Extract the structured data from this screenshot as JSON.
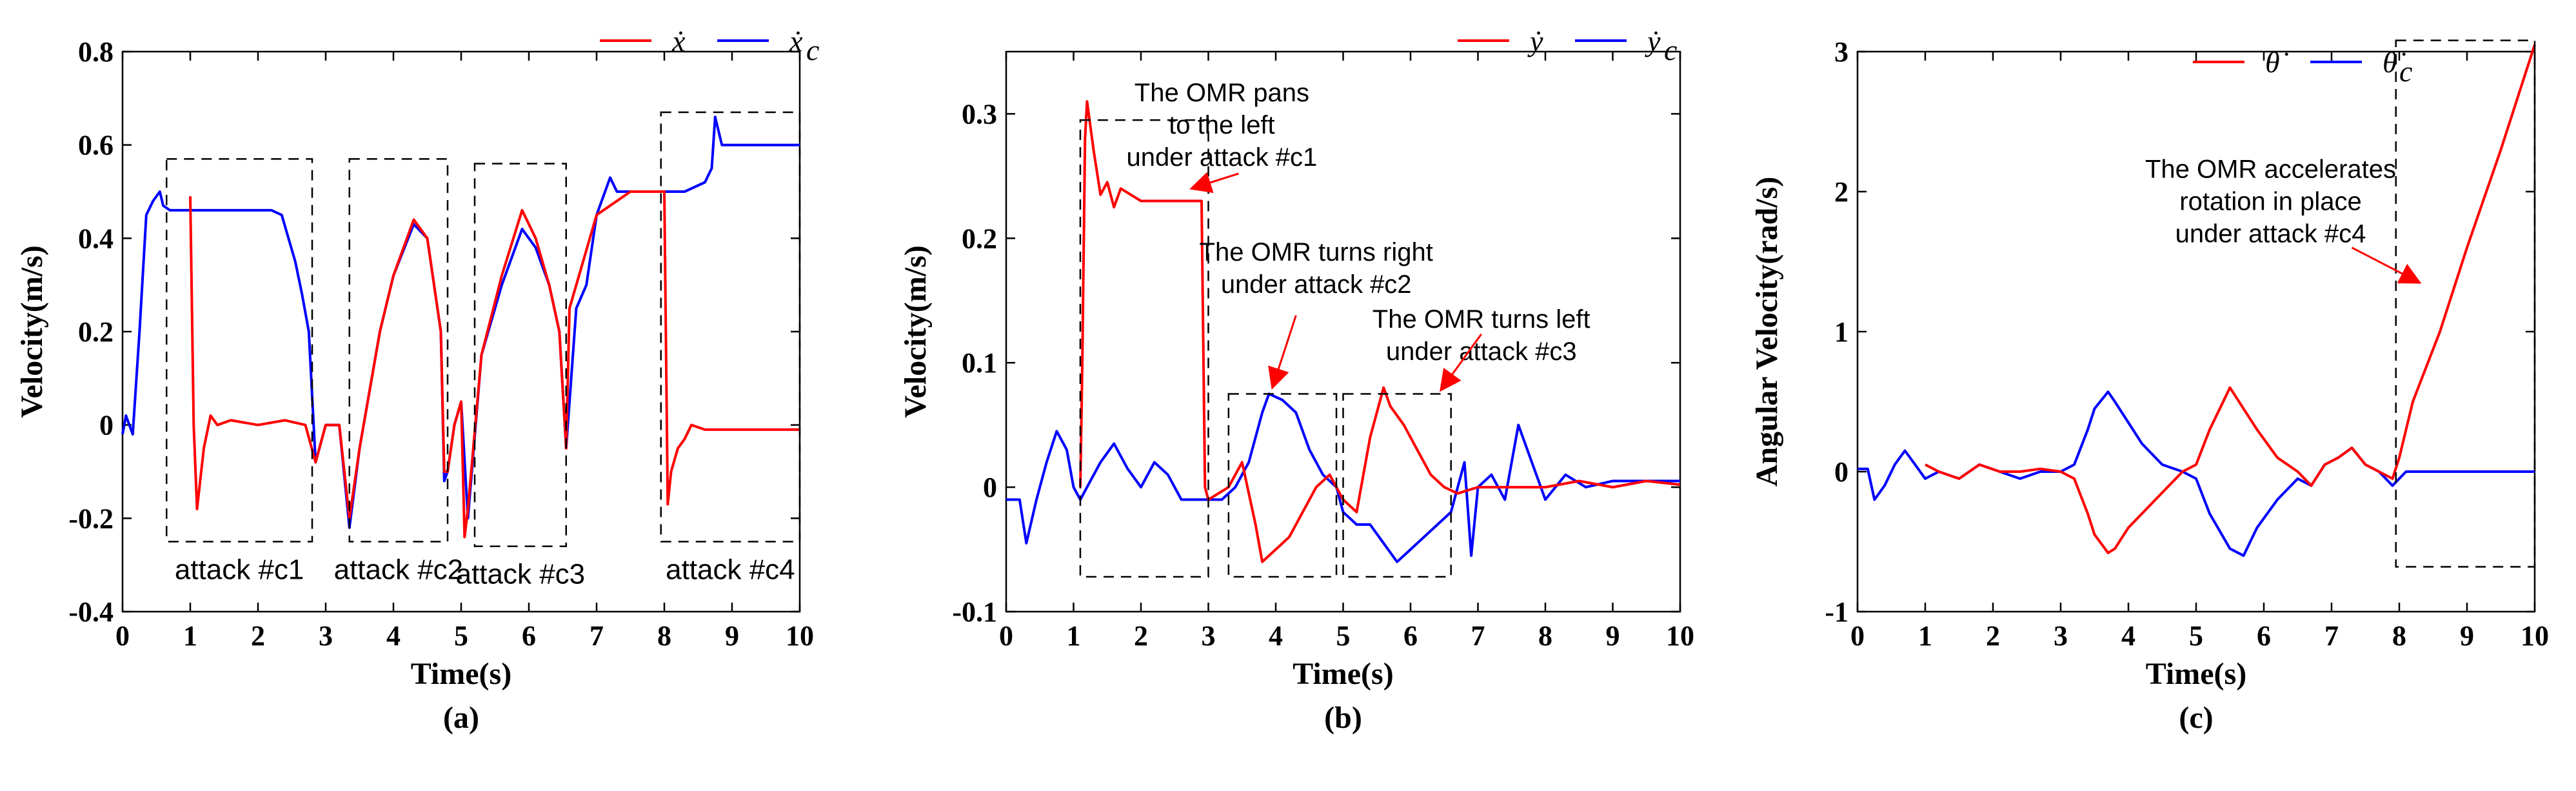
{
  "chart_data": [
    {
      "id": "a",
      "type": "line",
      "caption": "(a)",
      "xlabel": "Time(s)",
      "ylabel": "Velocity(m/s)",
      "xlim": [
        0,
        10
      ],
      "ylim": [
        -0.4,
        0.8
      ],
      "xticks": [
        "0",
        "1",
        "2",
        "3",
        "4",
        "5",
        "6",
        "7",
        "8",
        "9",
        "10"
      ],
      "yticks": [
        "-0.4",
        "-0.2",
        "0",
        "0.2",
        "0.4",
        "0.6",
        "0.8"
      ],
      "ytick_values": [
        -0.4,
        -0.2,
        0,
        0.2,
        0.4,
        0.6,
        0.8
      ],
      "colors": {
        "actual": "#ff0000",
        "commanded": "#0000ff"
      },
      "legend": [
        {
          "name": "x-dot",
          "symbol": "ẋ",
          "color": "#ff0000"
        },
        {
          "name": "x-dot-c",
          "symbol": "ẋ",
          "subscript": "c",
          "color": "#0000ff"
        }
      ],
      "series": [
        {
          "name": "x-dot-c",
          "color": "#0000ff",
          "x": [
            0,
            0.05,
            0.15,
            0.25,
            0.35,
            0.45,
            0.55,
            0.6,
            0.7,
            1.0,
            1.5,
            2.0,
            2.2,
            2.35,
            2.45,
            2.55,
            2.65,
            2.75,
            2.85,
            3.0,
            3.2,
            3.35,
            3.5,
            3.8,
            4.0,
            4.3,
            4.5,
            4.7,
            4.75,
            4.8,
            4.9,
            5.0,
            5.1,
            5.3,
            5.6,
            5.9,
            6.1,
            6.3,
            6.45,
            6.55,
            6.7,
            6.85,
            7.0,
            7.2,
            7.3,
            7.5,
            7.7,
            8.0,
            8.3,
            8.6,
            8.7,
            8.75,
            8.85,
            9.0,
            9.5,
            10
          ],
          "y": [
            -0.02,
            0.02,
            -0.02,
            0.2,
            0.45,
            0.48,
            0.5,
            0.47,
            0.46,
            0.46,
            0.46,
            0.46,
            0.46,
            0.45,
            0.4,
            0.35,
            0.28,
            0.2,
            -0.08,
            0,
            0,
            -0.22,
            -0.05,
            0.2,
            0.32,
            0.43,
            0.4,
            0.2,
            -0.12,
            -0.1,
            0,
            0.05,
            -0.2,
            0.15,
            0.3,
            0.42,
            0.38,
            0.3,
            0.2,
            -0.05,
            0.25,
            0.3,
            0.45,
            0.53,
            0.5,
            0.5,
            0.5,
            0.5,
            0.5,
            0.52,
            0.55,
            0.66,
            0.6,
            0.6,
            0.6,
            0.6
          ]
        },
        {
          "name": "x-dot",
          "color": "#ff0000",
          "x": [
            1.0,
            1.05,
            1.1,
            1.2,
            1.3,
            1.4,
            1.6,
            2.0,
            2.4,
            2.7,
            2.85,
            3.0,
            3.2,
            3.35,
            3.5,
            3.8,
            4.0,
            4.3,
            4.5,
            4.7,
            4.75,
            4.8,
            4.9,
            5.0,
            5.05,
            5.1,
            5.3,
            5.6,
            5.9,
            6.1,
            6.3,
            6.45,
            6.55,
            6.6,
            7.0,
            7.5,
            7.9,
            8.0,
            8.05,
            8.1,
            8.2,
            8.3,
            8.4,
            8.6,
            9.0,
            9.5,
            10
          ],
          "y": [
            0.49,
            0.0,
            -0.18,
            -0.05,
            0.02,
            0.0,
            0.01,
            0.0,
            0.01,
            0.0,
            -0.08,
            0,
            0,
            -0.2,
            -0.05,
            0.2,
            0.32,
            0.44,
            0.4,
            0.2,
            -0.1,
            -0.1,
            0,
            0.05,
            -0.24,
            -0.18,
            0.15,
            0.32,
            0.46,
            0.4,
            0.3,
            0.2,
            -0.05,
            0.25,
            0.45,
            0.5,
            0.5,
            0.5,
            -0.17,
            -0.1,
            -0.05,
            -0.03,
            0.0,
            -0.01,
            -0.01,
            -0.01,
            -0.01
          ]
        }
      ],
      "attack_boxes": [
        {
          "label": "attack #c1",
          "x0": 0.65,
          "x1": 2.8,
          "y0": -0.25,
          "y1": 0.57
        },
        {
          "label": "attack #c2",
          "x0": 3.35,
          "x1": 4.8,
          "y0": -0.25,
          "y1": 0.57
        },
        {
          "label": "attack #c3",
          "x0": 5.2,
          "x1": 6.55,
          "y0": -0.26,
          "y1": 0.56
        },
        {
          "label": "attack #c4",
          "x0": 7.95,
          "x1": 10,
          "y0": -0.25,
          "y1": 0.67
        }
      ],
      "annotations": []
    },
    {
      "id": "b",
      "type": "line",
      "caption": "(b)",
      "xlabel": "Time(s)",
      "ylabel": "Velocity(m/s)",
      "xlim": [
        0,
        10
      ],
      "ylim": [
        -0.1,
        0.35
      ],
      "xticks": [
        "0",
        "1",
        "2",
        "3",
        "4",
        "5",
        "6",
        "7",
        "8",
        "9",
        "10"
      ],
      "yticks": [
        "-0.1",
        "0",
        "0.1",
        "0.2",
        "0.3"
      ],
      "ytick_values": [
        -0.1,
        0,
        0.1,
        0.2,
        0.3
      ],
      "colors": {
        "actual": "#ff0000",
        "commanded": "#0000ff"
      },
      "legend": [
        {
          "name": "y-dot",
          "symbol": "ẏ",
          "color": "#ff0000"
        },
        {
          "name": "y-dot-c",
          "symbol": "ẏ",
          "subscript": "c",
          "color": "#0000ff"
        }
      ],
      "series": [
        {
          "name": "y-dot-c",
          "color": "#0000ff",
          "x": [
            0,
            0.2,
            0.3,
            0.45,
            0.6,
            0.75,
            0.9,
            1.0,
            1.1,
            1.2,
            1.4,
            1.6,
            1.8,
            2.0,
            2.2,
            2.4,
            2.6,
            2.8,
            3.0,
            3.2,
            3.4,
            3.6,
            3.8,
            3.9,
            4.1,
            4.3,
            4.5,
            4.7,
            4.9,
            5.0,
            5.2,
            5.4,
            5.6,
            5.8,
            6.0,
            6.2,
            6.4,
            6.6,
            6.8,
            6.9,
            7.0,
            7.2,
            7.4,
            7.6,
            7.8,
            8.0,
            8.3,
            8.6,
            9.0,
            9.5,
            10
          ],
          "y": [
            -0.01,
            -0.01,
            -0.045,
            -0.01,
            0.02,
            0.045,
            0.03,
            0.0,
            -0.01,
            0.0,
            0.02,
            0.035,
            0.015,
            0.0,
            0.02,
            0.01,
            -0.01,
            -0.01,
            -0.01,
            -0.01,
            0.0,
            0.02,
            0.06,
            0.075,
            0.07,
            0.06,
            0.03,
            0.01,
            0.0,
            -0.02,
            -0.03,
            -0.03,
            -0.045,
            -0.06,
            -0.05,
            -0.04,
            -0.03,
            -0.02,
            0.02,
            -0.055,
            0.0,
            0.01,
            -0.01,
            0.05,
            0.02,
            -0.01,
            0.01,
            0.0,
            0.005,
            0.005,
            0.005
          ]
        },
        {
          "name": "y-dot",
          "color": "#ff0000",
          "x": [
            1.1,
            1.13,
            1.17,
            1.2,
            1.3,
            1.4,
            1.5,
            1.6,
            1.7,
            2.0,
            2.3,
            2.6,
            2.9,
            2.95,
            3.0,
            3.3,
            3.5,
            3.7,
            3.8,
            4.0,
            4.2,
            4.4,
            4.6,
            4.8,
            5.0,
            5.2,
            5.4,
            5.6,
            5.7,
            5.9,
            6.1,
            6.3,
            6.5,
            6.7,
            7.0,
            7.4,
            7.8,
            8.0,
            8.5,
            9.0,
            9.5,
            10
          ],
          "y": [
            0.0,
            0.1,
            0.28,
            0.31,
            0.27,
            0.235,
            0.245,
            0.225,
            0.24,
            0.23,
            0.23,
            0.23,
            0.23,
            0.0,
            -0.01,
            0.0,
            0.02,
            -0.03,
            -0.06,
            -0.05,
            -0.04,
            -0.02,
            0.0,
            0.01,
            -0.01,
            -0.02,
            0.04,
            0.08,
            0.065,
            0.05,
            0.03,
            0.01,
            0.0,
            -0.005,
            0.0,
            0.0,
            0.0,
            0.0,
            0.005,
            0.0,
            0.005,
            0.002
          ]
        }
      ],
      "attack_boxes": [
        {
          "x0": 1.1,
          "x1": 3.0,
          "y0": -0.072,
          "y1": 0.295
        },
        {
          "x0": 3.3,
          "x1": 4.9,
          "y0": -0.072,
          "y1": 0.075
        },
        {
          "x0": 5.0,
          "x1": 6.6,
          "y0": -0.072,
          "y1": 0.075
        }
      ],
      "annotations": [
        {
          "lines": [
            "The OMR pans",
            "to the left",
            "under attack #c1"
          ],
          "tx": 3.2,
          "ty": 0.31,
          "ax": 2.75,
          "ay": 0.24,
          "arrow_from_x": 3.45,
          "arrow_from_y": 0.252
        },
        {
          "lines": [
            "The OMR turns right",
            "under attack #c2"
          ],
          "tx": 4.6,
          "ty": 0.182,
          "ax": 3.95,
          "ay": 0.08,
          "arrow_from_x": 4.3,
          "arrow_from_y": 0.138
        },
        {
          "lines": [
            "The OMR turns left",
            "under attack #c3"
          ],
          "tx": 7.05,
          "ty": 0.128,
          "ax": 6.45,
          "ay": 0.078,
          "arrow_from_x": 7.05,
          "arrow_from_y": 0.123
        }
      ]
    },
    {
      "id": "c",
      "type": "line",
      "caption": "(c)",
      "xlabel": "Time(s)",
      "ylabel": "Angular Velocity(rad/s)",
      "xlim": [
        0,
        10
      ],
      "ylim": [
        -1,
        3
      ],
      "xticks": [
        "0",
        "1",
        "2",
        "3",
        "4",
        "5",
        "6",
        "7",
        "8",
        "9",
        "10"
      ],
      "yticks": [
        "-1",
        "0",
        "1",
        "2",
        "3"
      ],
      "ytick_values": [
        -1,
        0,
        1,
        2,
        3
      ],
      "colors": {
        "actual": "#ff0000",
        "commanded": "#0000ff"
      },
      "legend": [
        {
          "name": "theta-dot",
          "symbol": "θ̇",
          "color": "#ff0000"
        },
        {
          "name": "theta-dot-c",
          "symbol": "θ̇",
          "subscript": "c",
          "color": "#0000ff"
        }
      ],
      "series": [
        {
          "name": "theta-dot-c",
          "color": "#0000ff",
          "x": [
            0,
            0.15,
            0.25,
            0.4,
            0.55,
            0.7,
            0.85,
            1.0,
            1.2,
            1.5,
            1.8,
            2.1,
            2.4,
            2.7,
            3.0,
            3.2,
            3.4,
            3.5,
            3.7,
            3.8,
            4.0,
            4.2,
            4.5,
            4.8,
            5.0,
            5.2,
            5.5,
            5.7,
            5.9,
            6.2,
            6.5,
            6.7,
            6.9,
            7.1,
            7.3,
            7.5,
            7.7,
            7.9,
            8.1,
            8.5,
            9.0,
            9.5,
            10
          ],
          "y": [
            0.02,
            0.02,
            -0.2,
            -0.1,
            0.05,
            0.15,
            0.05,
            -0.05,
            0.0,
            -0.05,
            0.05,
            0.0,
            -0.05,
            0.0,
            0.0,
            0.05,
            0.3,
            0.45,
            0.57,
            0.5,
            0.35,
            0.2,
            0.05,
            0.0,
            -0.05,
            -0.3,
            -0.55,
            -0.6,
            -0.4,
            -0.2,
            -0.05,
            -0.1,
            0.05,
            0.1,
            0.17,
            0.05,
            0.0,
            -0.1,
            0.0,
            0.0,
            0.0,
            0.0,
            0.0
          ]
        },
        {
          "name": "theta-dot",
          "color": "#ff0000",
          "x": [
            1.0,
            1.2,
            1.5,
            1.8,
            2.1,
            2.4,
            2.7,
            3.0,
            3.2,
            3.4,
            3.5,
            3.7,
            3.8,
            4.0,
            4.2,
            4.5,
            4.8,
            5.0,
            5.2,
            5.4,
            5.5,
            5.7,
            5.9,
            6.2,
            6.5,
            6.7,
            6.9,
            7.1,
            7.3,
            7.5,
            7.7,
            7.9,
            8.0,
            8.2,
            8.6,
            9.0,
            9.5,
            10
          ],
          "y": [
            0.05,
            0.0,
            -0.05,
            0.05,
            0.0,
            0.0,
            0.02,
            0.0,
            -0.05,
            -0.3,
            -0.45,
            -0.58,
            -0.55,
            -0.4,
            -0.3,
            -0.15,
            0.0,
            0.05,
            0.3,
            0.5,
            0.6,
            0.45,
            0.3,
            0.1,
            0.0,
            -0.1,
            0.05,
            0.1,
            0.17,
            0.05,
            0.0,
            -0.05,
            0.1,
            0.5,
            1.0,
            1.6,
            2.3,
            3.05
          ]
        }
      ],
      "attack_boxes": [
        {
          "x0": 7.95,
          "x1": 10,
          "y0": -0.68,
          "y1": 3.08
        }
      ],
      "annotations": [
        {
          "lines": [
            "The OMR accelerates",
            "rotation in place",
            "under attack #c4"
          ],
          "tx": 6.1,
          "ty": 2.1,
          "ax": 8.3,
          "ay": 1.35,
          "arrow_from_x": 7.3,
          "arrow_from_y": 1.6
        }
      ]
    }
  ]
}
